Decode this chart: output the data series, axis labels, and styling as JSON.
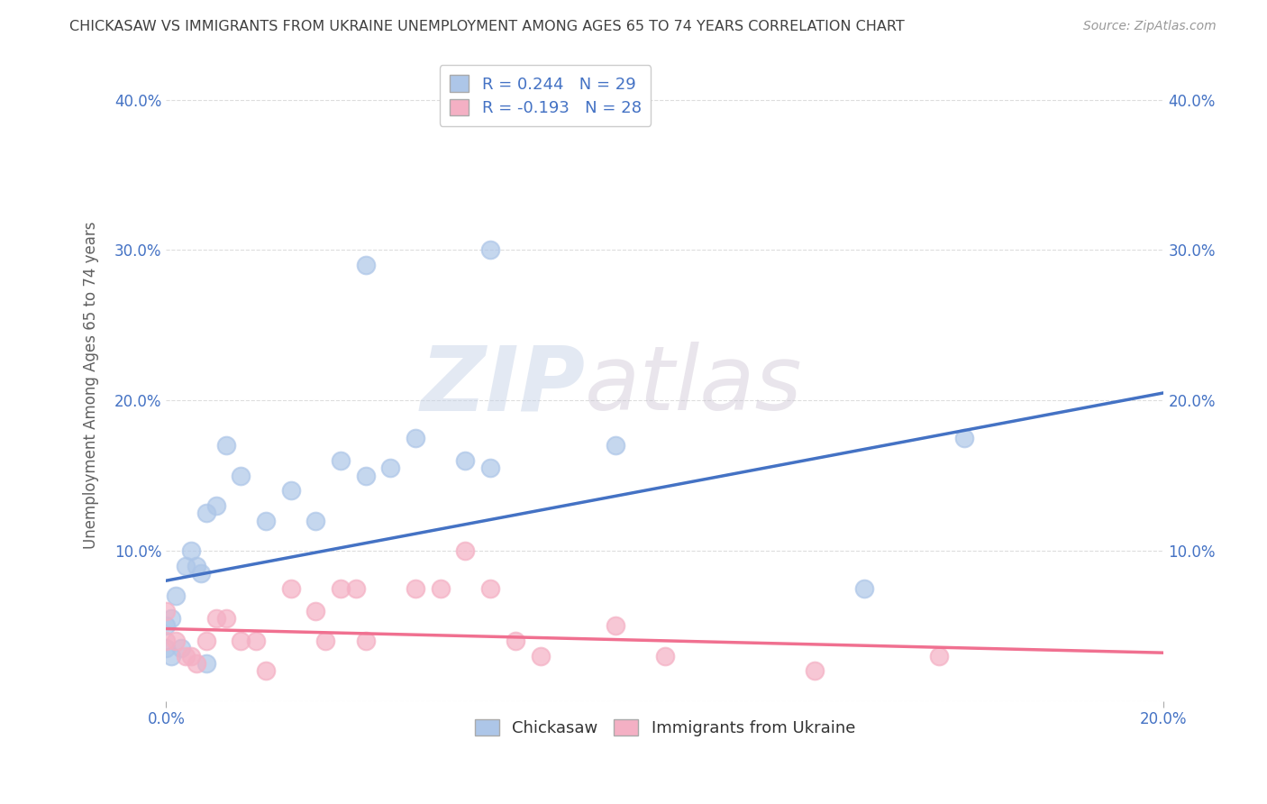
{
  "title": "CHICKASAW VS IMMIGRANTS FROM UKRAINE UNEMPLOYMENT AMONG AGES 65 TO 74 YEARS CORRELATION CHART",
  "source": "Source: ZipAtlas.com",
  "ylabel": "Unemployment Among Ages 65 to 74 years",
  "x_min": 0.0,
  "x_max": 0.2,
  "y_min": 0.0,
  "y_max": 0.42,
  "x_ticks": [
    0.0,
    0.2
  ],
  "x_tick_labels": [
    "0.0%",
    "20.0%"
  ],
  "y_ticks": [
    0.0,
    0.1,
    0.2,
    0.3,
    0.4
  ],
  "y_tick_labels": [
    "",
    "10.0%",
    "20.0%",
    "30.0%",
    "40.0%"
  ],
  "chickasaw_color": "#adc6e8",
  "ukraine_color": "#f4b0c4",
  "chickasaw_line_color": "#4472c4",
  "ukraine_line_color": "#f07090",
  "R_chickasaw": 0.244,
  "N_chickasaw": 29,
  "R_ukraine": -0.193,
  "N_ukraine": 28,
  "legend_label_1": "Chickasaw",
  "legend_label_2": "Immigrants from Ukraine",
  "watermark_zip": "ZIP",
  "watermark_atlas": "atlas",
  "chickasaw_x": [
    0.0,
    0.0,
    0.001,
    0.001,
    0.002,
    0.003,
    0.004,
    0.005,
    0.006,
    0.007,
    0.008,
    0.008,
    0.01,
    0.012,
    0.015,
    0.02,
    0.025,
    0.03,
    0.035,
    0.04,
    0.04,
    0.045,
    0.05,
    0.06,
    0.065,
    0.065,
    0.09,
    0.14,
    0.16
  ],
  "chickasaw_y": [
    0.035,
    0.05,
    0.03,
    0.055,
    0.07,
    0.035,
    0.09,
    0.1,
    0.09,
    0.085,
    0.125,
    0.025,
    0.13,
    0.17,
    0.15,
    0.12,
    0.14,
    0.12,
    0.16,
    0.29,
    0.15,
    0.155,
    0.175,
    0.16,
    0.3,
    0.155,
    0.17,
    0.075,
    0.175
  ],
  "ukraine_x": [
    0.0,
    0.0,
    0.002,
    0.004,
    0.005,
    0.006,
    0.008,
    0.01,
    0.012,
    0.015,
    0.018,
    0.02,
    0.025,
    0.03,
    0.032,
    0.035,
    0.038,
    0.04,
    0.05,
    0.055,
    0.06,
    0.065,
    0.07,
    0.075,
    0.09,
    0.1,
    0.13,
    0.155
  ],
  "ukraine_y": [
    0.04,
    0.06,
    0.04,
    0.03,
    0.03,
    0.025,
    0.04,
    0.055,
    0.055,
    0.04,
    0.04,
    0.02,
    0.075,
    0.06,
    0.04,
    0.075,
    0.075,
    0.04,
    0.075,
    0.075,
    0.1,
    0.075,
    0.04,
    0.03,
    0.05,
    0.03,
    0.02,
    0.03
  ],
  "chickasaw_line_x0": 0.0,
  "chickasaw_line_y0": 0.08,
  "chickasaw_line_x1": 0.2,
  "chickasaw_line_y1": 0.205,
  "ukraine_line_x0": 0.0,
  "ukraine_line_y0": 0.048,
  "ukraine_line_x1": 0.2,
  "ukraine_line_y1": 0.032,
  "background_color": "#ffffff",
  "grid_color": "#dddddd",
  "title_color": "#404040",
  "axis_label_color": "#606060",
  "tick_color": "#4472c4",
  "watermark_color": "#d0d8e8"
}
